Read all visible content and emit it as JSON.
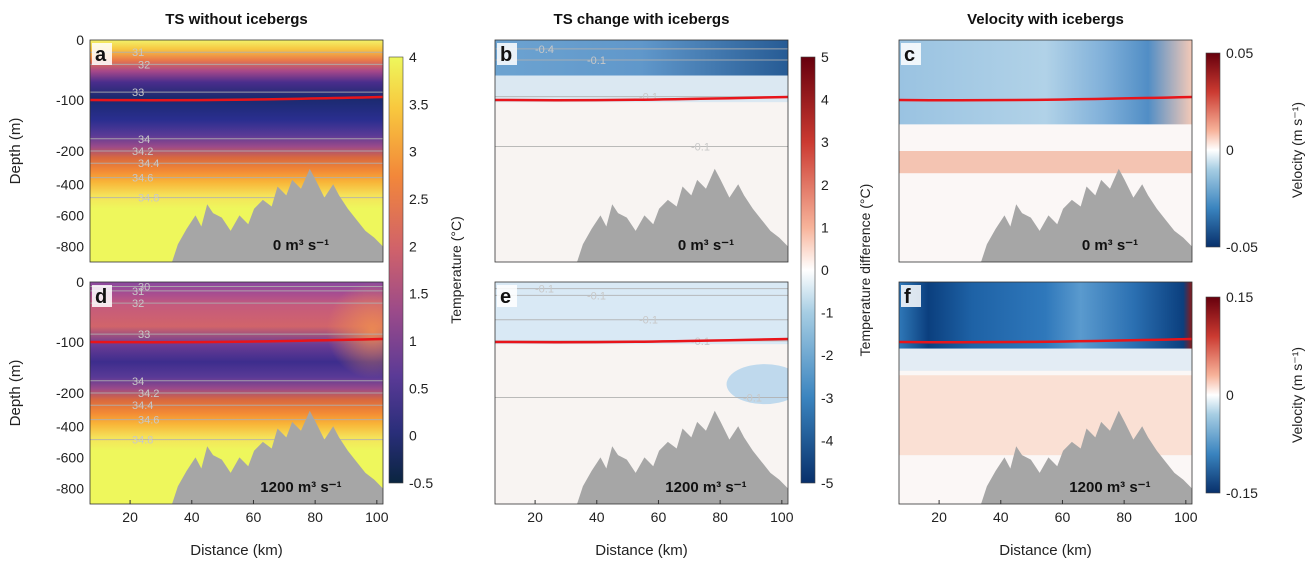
{
  "column_titles": [
    "TS without icebergs",
    "TS change with icebergs",
    "Velocity with icebergs"
  ],
  "x_axis": {
    "label": "Distance (km)",
    "ticks": [
      20,
      40,
      60,
      80,
      100
    ],
    "range": [
      7,
      102
    ]
  },
  "y_axis": {
    "label": "Depth (m)",
    "ticks": [
      "0",
      "-100",
      "-200",
      "-400",
      "-600",
      "-800"
    ]
  },
  "colors": {
    "interface": "#e8141a",
    "bathymetry": "#a6a6a6",
    "contour": "#b0b0b0"
  },
  "chart_data": [
    {
      "type": "heatmap",
      "panel": "a",
      "discharge_label": "0 m³ s⁻¹",
      "contours": [
        {
          "label": "31",
          "depth_row": 0.055
        },
        {
          "label": "32",
          "depth_row": 0.11
        },
        {
          "label": "33",
          "depth_row": 0.235
        },
        {
          "label": "34",
          "depth_row": 0.445
        },
        {
          "label": "34.2",
          "depth_row": 0.5
        },
        {
          "label": "34.4",
          "depth_row": 0.555
        },
        {
          "label": "34.6",
          "depth_row": 0.62
        },
        {
          "label": "34.8",
          "depth_row": 0.71
        }
      ],
      "colorbar": {
        "label": "Temperature (°C)",
        "ticks": [
          "4",
          "3.5",
          "3",
          "2.5",
          "2",
          "1.5",
          "1",
          "0.5",
          "0",
          "-0.5"
        ],
        "range": [
          -0.5,
          4
        ]
      }
    },
    {
      "type": "heatmap",
      "panel": "b",
      "discharge_label": "0 m³ s⁻¹",
      "contours": [
        {
          "label": "-0.4",
          "depth_row": 0.04
        },
        {
          "label": "-0.1",
          "depth_row": 0.09
        },
        {
          "label": "-0.1",
          "depth_row": 0.255
        },
        {
          "label": "-0.1",
          "depth_row": 0.48
        }
      ],
      "colorbar": {
        "label": "Temperature difference (°C)",
        "ticks": [
          "5",
          "4",
          "3",
          "2",
          "1",
          "0",
          "-1",
          "-2",
          "-3",
          "-4",
          "-5"
        ],
        "range": [
          -5,
          5
        ]
      }
    },
    {
      "type": "heatmap",
      "panel": "c",
      "discharge_label": "0 m³ s⁻¹",
      "colorbar": {
        "label": "Velocity (m s⁻¹)",
        "ticks": [
          "0.05",
          "0",
          "-0.05"
        ],
        "range": [
          -0.05,
          0.05
        ]
      }
    },
    {
      "type": "heatmap",
      "panel": "d",
      "discharge_label": "1200 m³ s⁻¹",
      "contours": [
        {
          "label": "31",
          "depth_row": 0.04
        },
        {
          "label": "30",
          "depth_row": 0.02
        },
        {
          "label": "32",
          "depth_row": 0.095
        },
        {
          "label": "33",
          "depth_row": 0.235
        },
        {
          "label": "34",
          "depth_row": 0.445
        },
        {
          "label": "34.2",
          "depth_row": 0.5
        },
        {
          "label": "34.4",
          "depth_row": 0.555
        },
        {
          "label": "34.6",
          "depth_row": 0.62
        },
        {
          "label": "34.8",
          "depth_row": 0.71
        }
      ]
    },
    {
      "type": "heatmap",
      "panel": "e",
      "discharge_label": "1200 m³ s⁻¹",
      "contours": [
        {
          "label": "-0.1",
          "depth_row": 0.03
        },
        {
          "label": "-0.1",
          "depth_row": 0.06
        },
        {
          "label": "-0.1",
          "depth_row": 0.17
        },
        {
          "label": "-0.1",
          "depth_row": 0.265
        },
        {
          "label": "-0.1",
          "depth_row": 0.52
        }
      ]
    },
    {
      "type": "heatmap",
      "panel": "f",
      "discharge_label": "1200 m³ s⁻¹",
      "colorbar": {
        "label": "Velocity (m s⁻¹)",
        "ticks": [
          "0.15",
          "0",
          "-0.15"
        ],
        "range": [
          -0.15,
          0.15
        ]
      }
    }
  ]
}
